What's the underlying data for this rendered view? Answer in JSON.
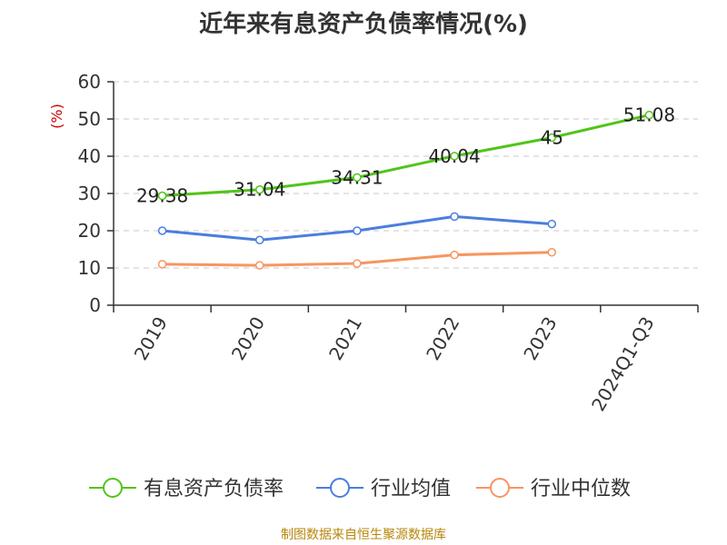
{
  "chart_data": {
    "type": "line",
    "title": "近年来有息资产负债率情况(%)",
    "ylabel": "(%)",
    "ylim": [
      0,
      60
    ],
    "yticks": [
      0,
      10,
      20,
      30,
      40,
      50,
      60
    ],
    "categories": [
      "2019",
      "2020",
      "2021",
      "2022",
      "2023",
      "2024Q1-Q3"
    ],
    "grid": true,
    "legend_position": "bottom",
    "series": [
      {
        "name": "有息资产负债率",
        "color": "#52c41a",
        "values": [
          29.38,
          31.04,
          34.31,
          40.04,
          45,
          51.08
        ],
        "labels": [
          "29.38",
          "31.04",
          "34.31",
          "40.04",
          "45",
          "51.08"
        ]
      },
      {
        "name": "行业均值",
        "color": "#4a7fdc",
        "values": [
          20.0,
          17.5,
          20.0,
          23.8,
          21.8,
          null
        ]
      },
      {
        "name": "行业中位数",
        "color": "#f79560",
        "values": [
          11.0,
          10.7,
          11.2,
          13.5,
          14.2,
          null
        ]
      }
    ]
  },
  "source": "制图数据来自恒生聚源数据库"
}
